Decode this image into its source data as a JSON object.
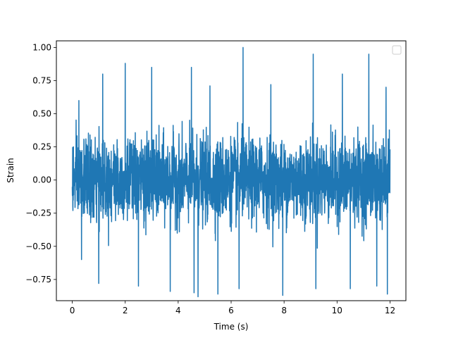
{
  "chart_data": {
    "type": "line",
    "xlabel": "Time (s)",
    "ylabel": "Strain",
    "xlim": [
      -0.6,
      12.6
    ],
    "ylim": [
      -0.91,
      1.05
    ],
    "x_ticks": [
      0,
      2,
      4,
      6,
      8,
      10,
      12
    ],
    "y_ticks": [
      -0.75,
      -0.5,
      -0.25,
      0.0,
      0.25,
      0.5,
      0.75,
      1.0
    ],
    "x_tick_labels": [
      "0",
      "2",
      "4",
      "6",
      "8",
      "10",
      "12"
    ],
    "y_tick_labels": [
      "−0.75",
      "−0.50",
      "−0.25",
      "0.00",
      "0.25",
      "0.50",
      "0.75",
      "1.00"
    ],
    "legend": "top-right",
    "legend_entries": [],
    "grid": false,
    "color": "#1f77b4",
    "series": [
      {
        "x_start": 0,
        "x_end": 12,
        "typical_band": [
          -0.4,
          0.4
        ],
        "peaks": [
          {
            "x": 0.25,
            "y": 0.6
          },
          {
            "x": 0.35,
            "y": -0.6
          },
          {
            "x": 1.0,
            "y": -0.78
          },
          {
            "x": 1.15,
            "y": 0.8
          },
          {
            "x": 2.0,
            "y": 0.88
          },
          {
            "x": 2.5,
            "y": -0.8
          },
          {
            "x": 3.0,
            "y": 0.85
          },
          {
            "x": 3.7,
            "y": -0.84
          },
          {
            "x": 4.5,
            "y": 0.85
          },
          {
            "x": 4.6,
            "y": -0.85
          },
          {
            "x": 4.75,
            "y": -0.88
          },
          {
            "x": 5.2,
            "y": 0.71
          },
          {
            "x": 5.5,
            "y": -0.86
          },
          {
            "x": 6.3,
            "y": -0.82
          },
          {
            "x": 6.45,
            "y": 1.0
          },
          {
            "x": 7.5,
            "y": 0.72
          },
          {
            "x": 7.95,
            "y": -0.87
          },
          {
            "x": 9.1,
            "y": 0.95
          },
          {
            "x": 9.2,
            "y": -0.82
          },
          {
            "x": 10.2,
            "y": 0.8
          },
          {
            "x": 10.5,
            "y": -0.82
          },
          {
            "x": 11.2,
            "y": 0.95
          },
          {
            "x": 11.5,
            "y": -0.8
          },
          {
            "x": 11.9,
            "y": -0.86
          },
          {
            "x": 11.85,
            "y": 0.7
          }
        ]
      }
    ]
  }
}
